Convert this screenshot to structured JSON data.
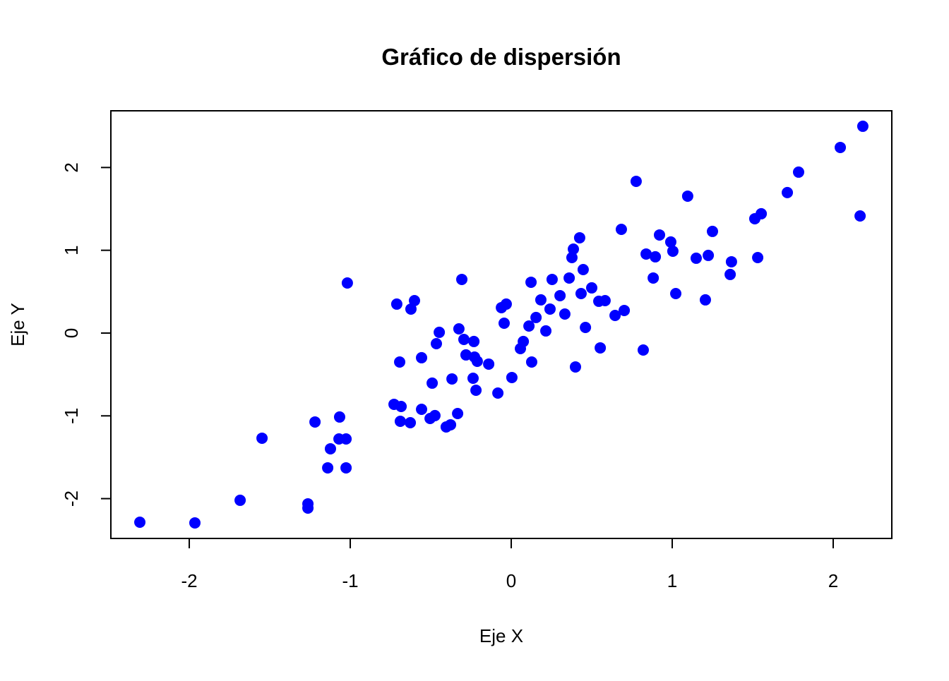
{
  "chart_data": {
    "type": "scatter",
    "title": "Gráfico de dispersión",
    "x_label": "Eje X",
    "y_label": "Eje Y",
    "color": "#0000ff",
    "xlim": [
      -2.487,
      2.364
    ],
    "ylim": [
      -2.481,
      2.685
    ],
    "xticks": [
      -2,
      -1,
      0,
      1,
      2
    ],
    "yticks": [
      -2,
      -1,
      0,
      1,
      2
    ],
    "x": [
      -2.307,
      -1.965,
      -1.684,
      -1.548,
      -1.263,
      -1.263,
      -1.219,
      -1.123,
      -1.14,
      -1.066,
      -1.07,
      -1.026,
      -1.026,
      -1.018,
      -0.728,
      -0.684,
      -0.689,
      -0.627,
      -0.711,
      -0.693,
      -0.601,
      -0.623,
      -0.557,
      -0.557,
      -0.491,
      -0.504,
      -0.474,
      -0.465,
      -0.447,
      -0.404,
      -0.377,
      -0.368,
      -0.333,
      -0.325,
      -0.307,
      -0.294,
      -0.281,
      -0.232,
      -0.228,
      -0.211,
      -0.237,
      -0.219,
      -0.14,
      -0.083,
      -0.061,
      -0.031,
      -0.044,
      0.004,
      0.057,
      0.075,
      0.11,
      0.123,
      0.127,
      0.154,
      0.184,
      0.215,
      0.241,
      0.254,
      0.303,
      0.333,
      0.36,
      0.377,
      0.386,
      0.399,
      0.425,
      0.434,
      0.447,
      0.461,
      0.5,
      0.544,
      0.553,
      0.583,
      0.645,
      0.684,
      0.702,
      0.776,
      0.82,
      0.838,
      0.882,
      0.895,
      0.921,
      0.991,
      1.004,
      1.022,
      1.096,
      1.149,
      1.206,
      1.224,
      1.25,
      1.36,
      1.368,
      1.513,
      1.531,
      1.553,
      1.715,
      1.785,
      2.044,
      2.167,
      2.184
    ],
    "values": [
      -2.285,
      -2.293,
      -2.02,
      -1.27,
      -2.063,
      -2.114,
      -1.074,
      -1.398,
      -1.628,
      -1.014,
      -1.279,
      -1.279,
      -1.628,
      0.605,
      -0.861,
      -0.887,
      -1.066,
      -1.083,
      0.35,
      -0.35,
      0.392,
      0.29,
      -0.298,
      -0.921,
      -0.605,
      -1.032,
      -0.997,
      -0.128,
      0.009,
      -1.134,
      -1.108,
      -0.554,
      -0.972,
      0.051,
      0.648,
      -0.077,
      -0.264,
      -0.102,
      -0.29,
      -0.341,
      -0.546,
      -0.691,
      -0.375,
      -0.725,
      0.307,
      0.35,
      0.119,
      -0.537,
      -0.188,
      -0.102,
      0.085,
      0.614,
      -0.35,
      0.188,
      0.401,
      0.026,
      0.29,
      0.648,
      0.452,
      0.23,
      0.665,
      0.912,
      1.014,
      -0.409,
      1.151,
      0.477,
      0.767,
      0.068,
      0.546,
      0.384,
      -0.179,
      0.392,
      0.213,
      1.253,
      0.273,
      1.833,
      -0.205,
      0.955,
      0.665,
      0.921,
      1.185,
      1.1,
      0.989,
      0.477,
      1.654,
      0.904,
      0.401,
      0.938,
      1.228,
      0.708,
      0.861,
      1.381,
      0.912,
      1.441,
      1.697,
      1.944,
      2.242,
      1.415,
      2.498
    ]
  }
}
